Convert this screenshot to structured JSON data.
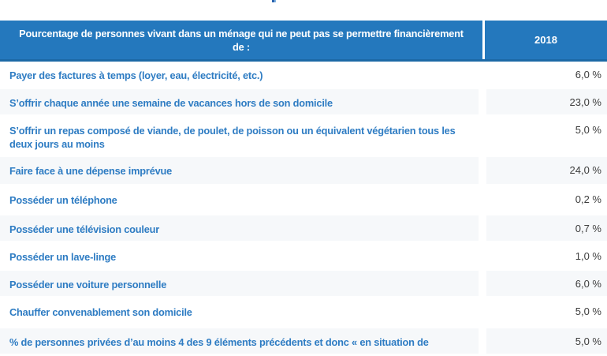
{
  "chart_data": {
    "type": "table",
    "title": "Pourcentage de personnes vivant dans un ménage qui ne peut pas se permettre financièrement de :",
    "columns": [
      "Pourcentage de personnes vivant dans un ménage qui ne peut pas se permettre financièrement de :",
      "2018"
    ],
    "unit": "%",
    "rows": [
      {
        "label": "Payer des factures à temps (loyer, eau, électricité, etc.)",
        "value": 6.0
      },
      {
        "label": "S’offrir chaque année une semaine de vacances hors de son domicile",
        "value": 23.0
      },
      {
        "label": "S’offrir un repas composé de viande, de poulet, de poisson ou un équivalent végétarien tous les deux jours au moins",
        "value": 5.0
      },
      {
        "label": "Faire face à une dépense imprévue",
        "value": 24.0
      },
      {
        "label": "Posséder un téléphone",
        "value": 0.2
      },
      {
        "label": "Posséder une télévision couleur",
        "value": 0.7
      },
      {
        "label": "Posséder un lave-linge",
        "value": 1.0
      },
      {
        "label": "Posséder une voiture personnelle",
        "value": 6.0
      },
      {
        "label": "Chauffer convenablement son domicile",
        "value": 5.0
      },
      {
        "label": "% de personnes privées d’au moins 4 des 9 éléments précédents et donc « en situation de",
        "value": 5.0
      }
    ]
  },
  "table": {
    "header": {
      "label": "Pourcentage de personnes vivant dans un ménage qui ne peut pas se permettre financièrement\nde :",
      "year": "2018"
    },
    "rows": [
      {
        "label": "Payer des factures à temps (loyer, eau, électricité, etc.)",
        "value": "6,0 %"
      },
      {
        "label": "S’offrir chaque année une semaine de vacances hors de son domicile",
        "value": "23,0 %"
      },
      {
        "label": "S’offrir un repas composé de viande, de poulet, de poisson ou un équivalent végétarien tous les\ndeux jours au moins",
        "value": "5,0 %"
      },
      {
        "label": "Faire face à une dépense imprévue",
        "value": "24,0 %"
      },
      {
        "label": "Posséder un téléphone",
        "value": "0,2 %"
      },
      {
        "label": "Posséder une télévision couleur",
        "value": "0,7 %"
      },
      {
        "label": "Posséder un lave-linge",
        "value": "1,0 %"
      },
      {
        "label": "Posséder une voiture personnelle",
        "value": "6,0 %"
      },
      {
        "label": "Chauffer convenablement son domicile",
        "value": "5,0 %"
      },
      {
        "label": "% de personnes privées d’au moins 4 des 9 éléments précédents et donc « en situation de",
        "value": "5,0 %"
      }
    ]
  },
  "colors": {
    "header_bg": "#2478bd",
    "header_border": "#1c69a6",
    "label_text": "#2e7cc3",
    "value_text": "#3d3d3d",
    "shaded_row_bg": "#f6f8fa"
  }
}
